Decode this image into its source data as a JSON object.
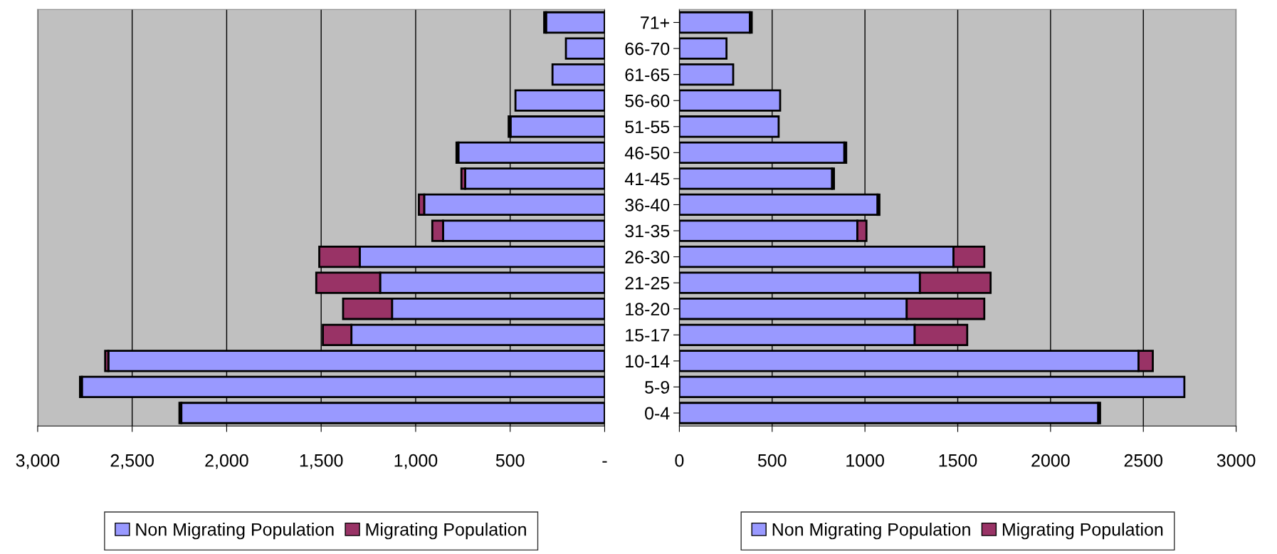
{
  "chart_data": [
    {
      "type": "bar",
      "orientation": "horizontal",
      "stacked": true,
      "tick_labels": "x",
      "grid": "x",
      "legend": "bottom",
      "series": [
        {
          "name": "Non Migrating Population",
          "color": "#9999ff",
          "values": [
            310,
            205,
            276,
            472,
            498,
            774,
            738,
            955,
            855,
            1296,
            1188,
            1125,
            1340,
            2626,
            2766,
            2240
          ]
        },
        {
          "name": "Migrating Population",
          "color": "#993366",
          "values": [
            10,
            0,
            0,
            0,
            10,
            10,
            20,
            28,
            57,
            214,
            338,
            259,
            151,
            17,
            10,
            10
          ]
        }
      ],
      "xlim": [
        3000,
        0
      ],
      "xticks": [
        {
          "value": 3000,
          "label": "3,000"
        },
        {
          "value": 2500,
          "label": "2,500"
        },
        {
          "value": 2000,
          "label": "2,000"
        },
        {
          "value": 1500,
          "label": "1,500"
        },
        {
          "value": 1000,
          "label": "1,000"
        },
        {
          "value": 500,
          "label": "500"
        },
        {
          "value": 0,
          "label": "-"
        }
      ]
    },
    {
      "type": "bar",
      "orientation": "horizontal",
      "stacked": true,
      "grid": "x",
      "legend": "bottom",
      "categories": [
        "71+",
        "66-70",
        "61-65",
        "56-60",
        "51-55",
        "46-50",
        "41-45",
        "36-40",
        "31-35",
        "26-30",
        "21-25",
        "18-20",
        "15-17",
        "10-14",
        "5-9",
        "0-4"
      ],
      "series": [
        {
          "name": "Non Migrating Population",
          "color": "#9999ff",
          "values": [
            380,
            254,
            290,
            543,
            535,
            889,
            823,
            1068,
            959,
            1477,
            1296,
            1225,
            1268,
            2474,
            2721,
            2257
          ]
        },
        {
          "name": "Migrating Population",
          "color": "#993366",
          "values": [
            10,
            0,
            0,
            0,
            0,
            10,
            10,
            10,
            49,
            166,
            381,
            418,
            283,
            77,
            0,
            10
          ]
        }
      ],
      "xlim": [
        0,
        3000
      ],
      "xticks": [
        0,
        500,
        1000,
        1500,
        2000,
        2500,
        3000
      ]
    }
  ]
}
